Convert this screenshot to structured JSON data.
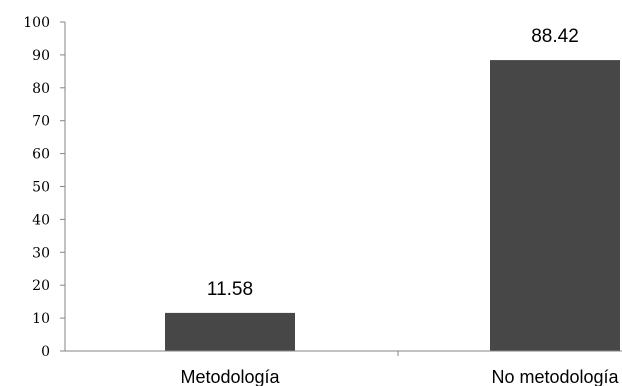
{
  "chart_data": {
    "type": "bar",
    "categories": [
      "Metodología",
      "No metodología"
    ],
    "values": [
      11.58,
      88.42
    ],
    "data_labels": [
      "11.58",
      "88.42"
    ],
    "ylim": [
      0,
      100
    ],
    "yticks": [
      0,
      10,
      20,
      30,
      40,
      50,
      60,
      70,
      80,
      90,
      100
    ],
    "title": "",
    "xlabel": "",
    "ylabel": "",
    "grid": false,
    "colors": {
      "bar": "#474747",
      "axis": "#868686"
    }
  }
}
